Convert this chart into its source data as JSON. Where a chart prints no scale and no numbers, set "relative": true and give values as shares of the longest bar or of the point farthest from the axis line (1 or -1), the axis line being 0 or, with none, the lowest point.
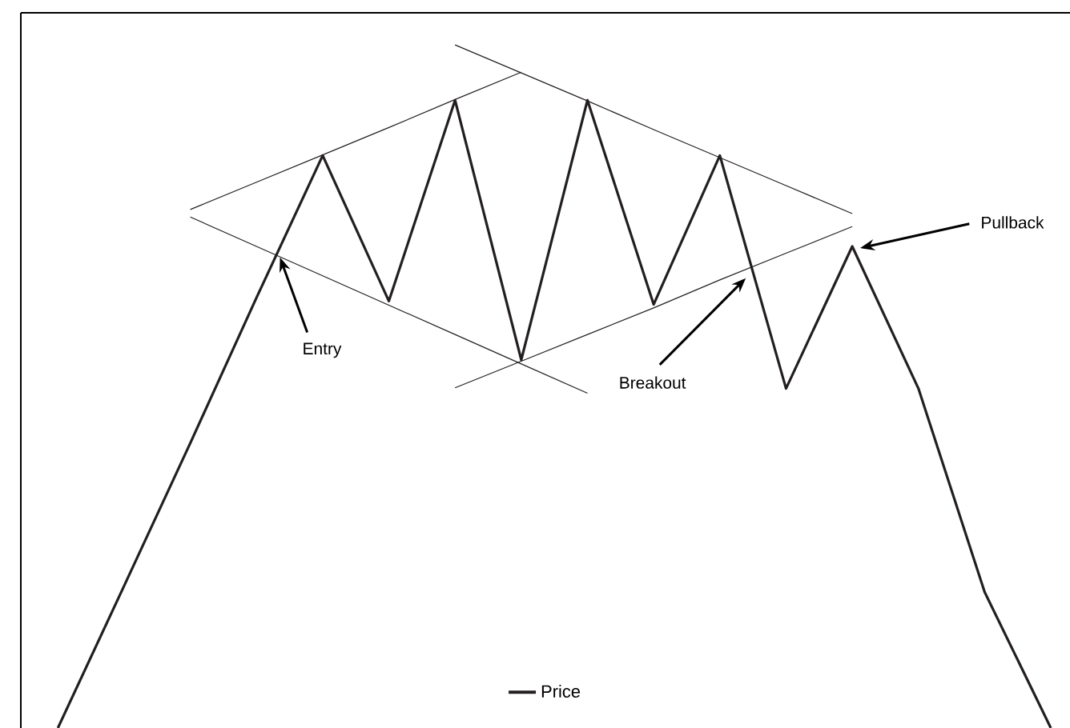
{
  "chart_data": {
    "type": "line",
    "relative": true,
    "tick_labels": false,
    "legend": "bottom",
    "categories": [
      null,
      null,
      null,
      null,
      null,
      null,
      null,
      null,
      null,
      null,
      null,
      null,
      null,
      null,
      null,
      null
    ],
    "series": [
      {
        "name": "Price",
        "color": "#231f20",
        "values": [
          0,
          0.208,
          0.417,
          0.63,
          0.838,
          0.625,
          0.919,
          0.539,
          0.919,
          0.62,
          0.838,
          0.497,
          0.705,
          0.497,
          0.199,
          0
        ]
      },
      {
        "type": "line",
        "color": "#231f20",
        "values": [
          null,
          null,
          0.759,
          0.799,
          0.839,
          0.879,
          0.92,
          0.96,
          null,
          null,
          null,
          null,
          null,
          null,
          null,
          null
        ]
      },
      {
        "type": "line",
        "color": "#231f20",
        "values": [
          null,
          null,
          0.748,
          0.705,
          0.662,
          0.619,
          0.576,
          0.533,
          0.49,
          null,
          null,
          null,
          null,
          null,
          null,
          null
        ]
      },
      {
        "type": "line",
        "color": "#231f20",
        "values": [
          null,
          null,
          null,
          null,
          null,
          null,
          1,
          0.959,
          0.918,
          0.876,
          0.835,
          0.794,
          0.753,
          null,
          null,
          null
        ]
      },
      {
        "type": "line",
        "color": "#231f20",
        "values": [
          null,
          null,
          null,
          null,
          null,
          null,
          0.498,
          0.537,
          0.576,
          0.615,
          0.656,
          0.695,
          0.734,
          null,
          null,
          null
        ]
      }
    ],
    "annotations": [
      "Entry",
      "Breakout",
      "Pullback"
    ]
  }
}
